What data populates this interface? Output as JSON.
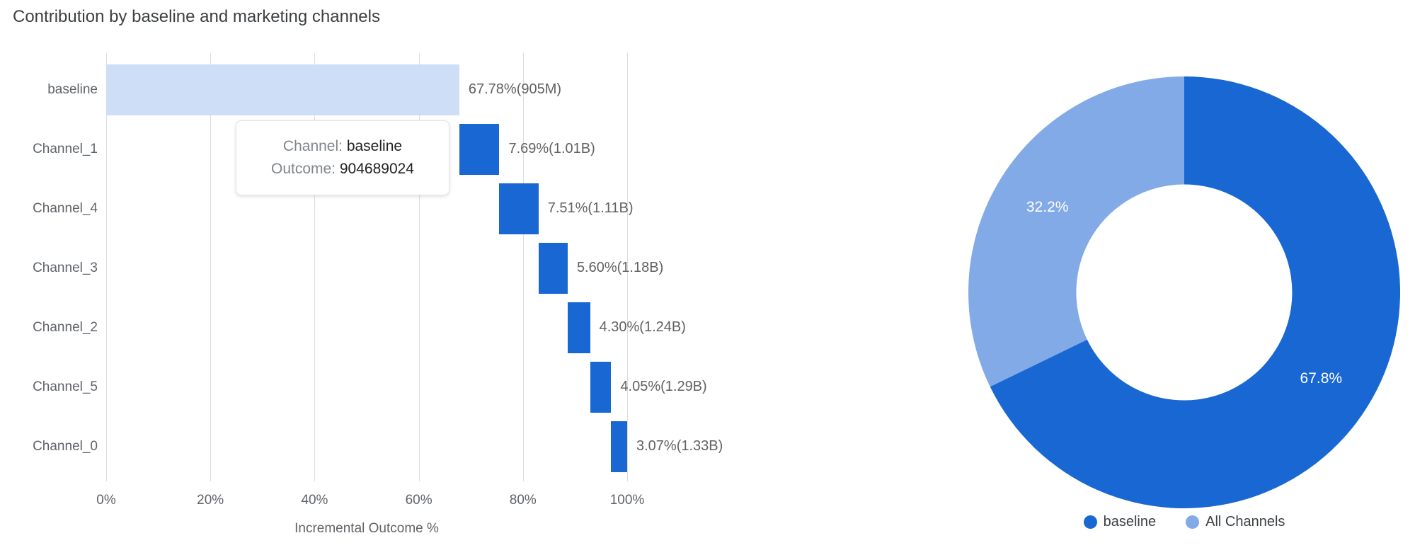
{
  "title": "Contribution by baseline and marketing channels",
  "tooltip": {
    "channel_label": "Channel:",
    "channel_value": "baseline",
    "outcome_label": "Outcome:",
    "outcome_value": "904689024"
  },
  "colors": {
    "baseline_bar": "#cfdef7",
    "channel_bar": "#1967d2",
    "donut_dark": "#1967d2",
    "donut_light": "#82aae6",
    "grid": "#dadce0",
    "axis_text": "#5f6368",
    "value_text": "#616161",
    "title_text": "#3c4043"
  },
  "chart_data": [
    {
      "type": "bar",
      "subtype": "horizontal-waterfall",
      "title": "Contribution by baseline and marketing channels",
      "xlabel": "Incremental Outcome %",
      "xlim": [
        0,
        100
      ],
      "x_ticks": [
        "0%",
        "20%",
        "40%",
        "60%",
        "80%",
        "100%"
      ],
      "grid": true,
      "categories": [
        "baseline",
        "Channel_1",
        "Channel_4",
        "Channel_3",
        "Channel_2",
        "Channel_5",
        "Channel_0"
      ],
      "values_pct": [
        67.78,
        7.69,
        7.51,
        5.6,
        4.3,
        4.05,
        3.07
      ],
      "cumulative_pct": [
        [
          0,
          67.78
        ],
        [
          67.78,
          75.47
        ],
        [
          75.47,
          82.98
        ],
        [
          82.98,
          88.58
        ],
        [
          88.58,
          92.88
        ],
        [
          92.88,
          96.93
        ],
        [
          96.93,
          100.0
        ]
      ],
      "cumulative_outcome": [
        "905M",
        "1.01B",
        "1.11B",
        "1.18B",
        "1.24B",
        "1.29B",
        "1.33B"
      ],
      "bar_labels": [
        "67.78%(905M)",
        "7.69%(1.01B)",
        "7.51%(1.11B)",
        "5.60%(1.18B)",
        "4.30%(1.24B)",
        "4.05%(1.29B)",
        "3.07%(1.33B)"
      ]
    },
    {
      "type": "pie",
      "subtype": "donut",
      "labels": [
        "baseline",
        "All Channels"
      ],
      "values": [
        67.8,
        32.2
      ],
      "slice_labels": [
        "67.8%",
        "32.2%"
      ],
      "colors": [
        "#1967d2",
        "#82aae6"
      ],
      "start_angle": "top",
      "direction": "clockwise",
      "inner_radius_ratio": 0.5,
      "legend_position": "bottom"
    }
  ]
}
